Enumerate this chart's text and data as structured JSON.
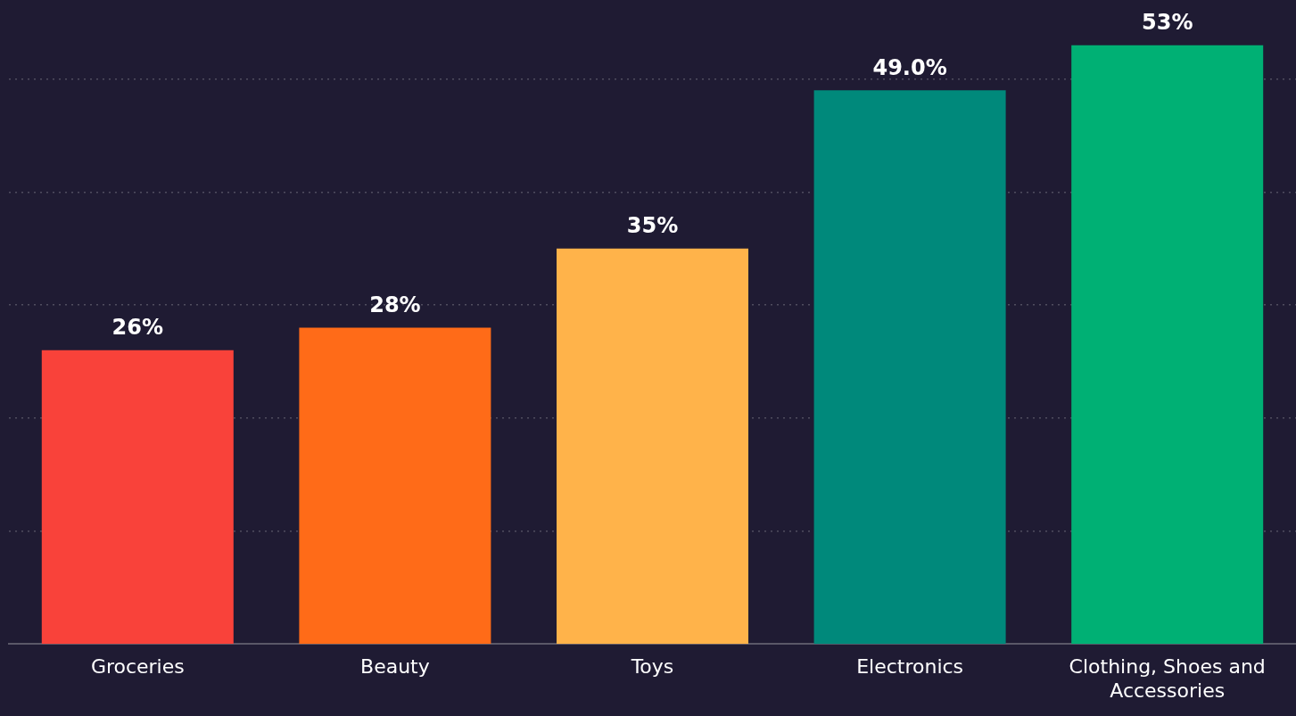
{
  "chart_data": {
    "type": "bar",
    "categories": [
      "Groceries",
      "Beauty",
      "Toys",
      "Electronics",
      "Clothing, Shoes and Accessories"
    ],
    "values": [
      26,
      28,
      35,
      49.0,
      53
    ],
    "colors": [
      "#f9423a",
      "#ff6b18",
      "#ffb34a",
      "#00897b",
      "#00b074"
    ],
    "value_labels": [
      "26%",
      "28%",
      "35%",
      "49.0%",
      "53%"
    ],
    "ylim": [
      0,
      57
    ],
    "yticks": [
      {
        "value": 10,
        "label": null
      },
      {
        "value": 20,
        "label": null
      },
      {
        "value": 30,
        "label": null
      },
      {
        "value": 40,
        "label": null
      },
      {
        "value": 50,
        "label": null
      }
    ],
    "grid": "y",
    "tick_labels": "x",
    "legend": false
  }
}
